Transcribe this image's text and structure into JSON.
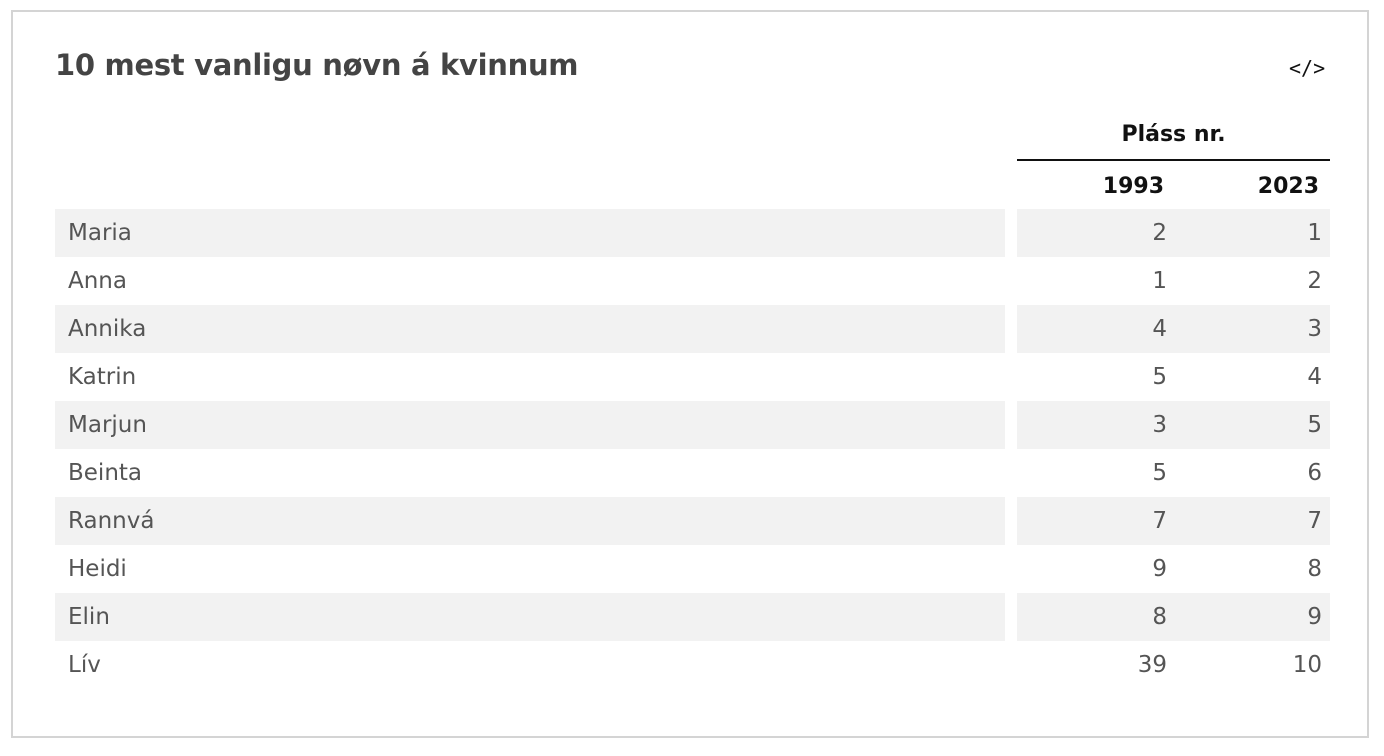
{
  "title": "10 mest vanligu nøvn á kvinnum",
  "embed_icon": "code-embed-icon",
  "embed_label": "</>",
  "table": {
    "group_header": "Pláss nr.",
    "columns": [
      "1993",
      "2023"
    ],
    "rows": [
      {
        "name": "Maria",
        "y1993": "2",
        "y2023": "1"
      },
      {
        "name": "Anna",
        "y1993": "1",
        "y2023": "2"
      },
      {
        "name": "Annika",
        "y1993": "4",
        "y2023": "3"
      },
      {
        "name": "Katrin",
        "y1993": "5",
        "y2023": "4"
      },
      {
        "name": "Marjun",
        "y1993": "3",
        "y2023": "5"
      },
      {
        "name": "Beinta",
        "y1993": "5",
        "y2023": "6"
      },
      {
        "name": "Rannvá",
        "y1993": "7",
        "y2023": "7"
      },
      {
        "name": "Heidi",
        "y1993": "9",
        "y2023": "8"
      },
      {
        "name": "Elin",
        "y1993": "8",
        "y2023": "9"
      },
      {
        "name": "Lív",
        "y1993": "39",
        "y2023": "10"
      }
    ]
  }
}
